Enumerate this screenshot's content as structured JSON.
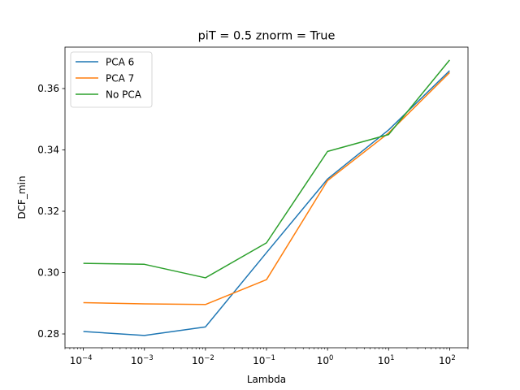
{
  "chart_data": {
    "type": "line",
    "title": "piT = 0.5 znorm = True",
    "xlabel": "Lambda",
    "ylabel": "DCF_min",
    "x": [
      0.0001,
      0.001,
      0.01,
      0.1,
      1,
      10,
      100
    ],
    "x_scale": "log",
    "x_tick_exponents": [
      "-4",
      "-3",
      "-2",
      "-1",
      "0",
      "1",
      "2"
    ],
    "y_ticks": [
      "0.28",
      "0.30",
      "0.32",
      "0.34",
      "0.36"
    ],
    "xlim": [
      5e-05,
      200
    ],
    "ylim": [
      0.2755,
      0.3735
    ],
    "grid": false,
    "legend_position": "upper-left",
    "series": [
      {
        "name": "PCA 6",
        "color": "#1f77b4",
        "values": [
          0.2808,
          0.2795,
          0.2823,
          0.3065,
          0.3305,
          0.3465,
          0.3658
        ]
      },
      {
        "name": "PCA 7",
        "color": "#ff7f0e",
        "values": [
          0.2902,
          0.2898,
          0.2896,
          0.2977,
          0.33,
          0.3455,
          0.3652
        ]
      },
      {
        "name": "No PCA",
        "color": "#2ca02c",
        "values": [
          0.303,
          0.3027,
          0.2983,
          0.3097,
          0.3395,
          0.345,
          0.3693
        ]
      }
    ]
  }
}
